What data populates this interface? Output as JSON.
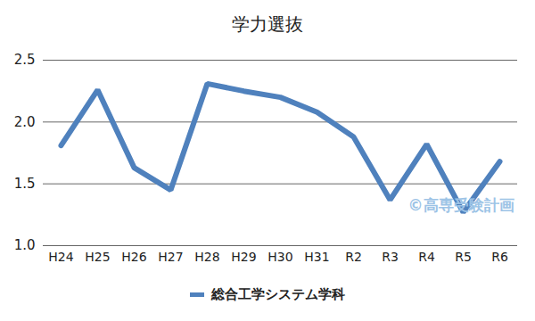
{
  "chart_data": {
    "type": "line",
    "title": "学力選抜",
    "categories": [
      "H24",
      "H25",
      "H26",
      "H27",
      "H28",
      "H29",
      "H30",
      "H31",
      "R2",
      "R3",
      "R4",
      "R5",
      "R6"
    ],
    "series": [
      {
        "name": "総合工学システム学科",
        "color": "#4f81bd",
        "values": [
          1.81,
          2.26,
          1.63,
          1.45,
          2.31,
          2.25,
          2.2,
          2.08,
          1.88,
          1.37,
          1.82,
          1.27,
          1.68
        ]
      }
    ],
    "ylim": [
      1,
      2.5
    ],
    "yticks": [
      {
        "value": 1,
        "label": "1.0"
      },
      {
        "value": 1.5,
        "label": "1.5"
      },
      {
        "value": 2,
        "label": "2.0"
      },
      {
        "value": 2.5,
        "label": "2.5"
      }
    ],
    "grid": true,
    "legend": "bottom",
    "annotations": [
      "©高専受験計画"
    ]
  }
}
